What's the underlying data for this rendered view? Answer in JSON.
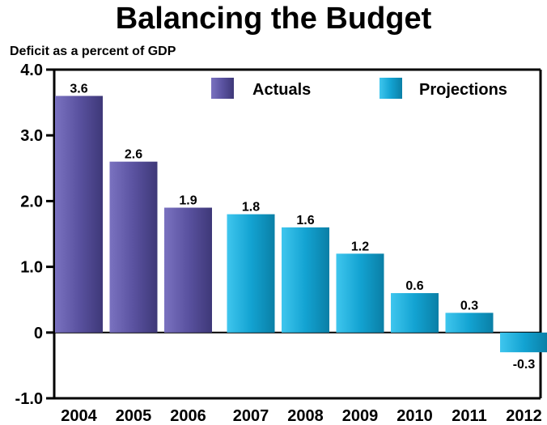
{
  "chart_data": {
    "type": "bar",
    "title": "Balancing the Budget",
    "ylabel": "Deficit as a percent of GDP",
    "xlabel": "",
    "ylim": [
      -1.0,
      4.0
    ],
    "yticks": [
      "4.0",
      "3.0",
      "2.0",
      "1.0",
      "0",
      "-1.0"
    ],
    "categories": [
      "2004",
      "2005",
      "2006",
      "2007",
      "2008",
      "2009",
      "2010",
      "2011",
      "2012"
    ],
    "values": [
      3.6,
      2.6,
      1.9,
      1.8,
      1.6,
      1.2,
      0.6,
      0.3,
      -0.3
    ],
    "value_labels": [
      "3.6",
      "2.6",
      "1.9",
      "1.8",
      "1.6",
      "1.2",
      "0.6",
      "0.3",
      "-0.3"
    ],
    "series_type": [
      "Actuals",
      "Actuals",
      "Actuals",
      "Projections",
      "Projections",
      "Projections",
      "Projections",
      "Projections",
      "Projections"
    ],
    "legend": [
      {
        "name": "Actuals",
        "color": "#5a52a0"
      },
      {
        "name": "Projections",
        "color": "#1aa6d6"
      }
    ],
    "legend_position": "top-right",
    "grid": false
  }
}
